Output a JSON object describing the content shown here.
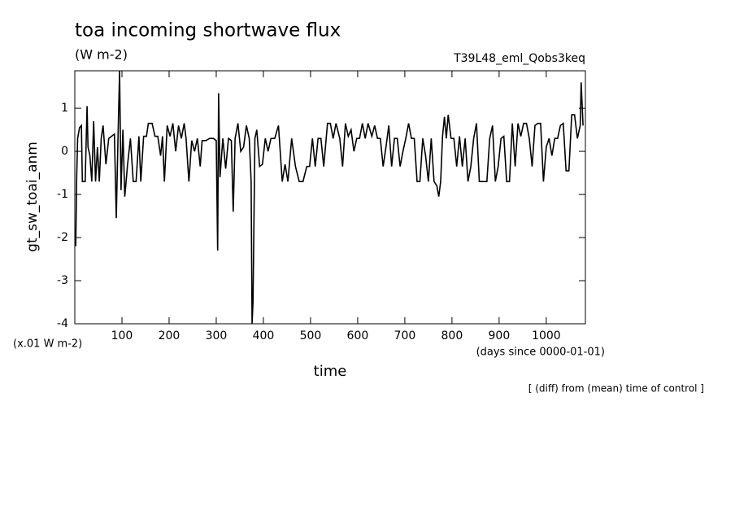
{
  "chart_data": {
    "type": "line",
    "title": "toa incoming shortwave flux",
    "subtitle": "(W m-2)",
    "annotation": "T39L48_eml_Qobs3keq",
    "ylabel": "gt_sw_toai_anm",
    "yunit": "(x.01 W m-2)",
    "xunit": "(days since 0000-01-01)",
    "xlabel": "time",
    "footnote": "[ (diff) from (mean) time of control ]",
    "xlim": [
      0,
      1083
    ],
    "ylim": [
      -4,
      1.87
    ],
    "xticks": [
      100,
      200,
      300,
      400,
      500,
      600,
      700,
      800,
      900,
      1000
    ],
    "yticks": [
      1,
      0,
      -1,
      -2,
      -3,
      -4
    ],
    "series": [
      {
        "name": "gt_sw_toai_anm",
        "color": "#000000",
        "x": [
          2,
          4,
          6,
          10,
          14,
          16,
          22,
          26,
          28,
          32,
          36,
          40,
          44,
          48,
          52,
          56,
          60,
          66,
          72,
          78,
          84,
          88,
          92,
          95,
          98,
          102,
          106,
          112,
          118,
          124,
          130,
          136,
          140,
          146,
          152,
          156,
          164,
          170,
          176,
          182,
          186,
          190,
          196,
          202,
          208,
          214,
          220,
          226,
          232,
          236,
          242,
          248,
          254,
          260,
          266,
          270,
          278,
          286,
          294,
          300,
          303,
          305,
          308,
          314,
          320,
          326,
          332,
          336,
          340,
          346,
          352,
          358,
          364,
          370,
          374,
          376,
          378,
          382,
          386,
          392,
          398,
          404,
          410,
          416,
          424,
          432,
          440,
          446,
          452,
          460,
          468,
          476,
          484,
          492,
          498,
          504,
          510,
          516,
          522,
          528,
          536,
          542,
          548,
          554,
          562,
          568,
          574,
          580,
          586,
          592,
          598,
          604,
          610,
          616,
          622,
          630,
          636,
          642,
          648,
          654,
          660,
          666,
          672,
          678,
          684,
          690,
          696,
          702,
          708,
          714,
          720,
          726,
          732,
          738,
          744,
          750,
          756,
          762,
          768,
          772,
          776,
          780,
          784,
          788,
          792,
          798,
          804,
          810,
          816,
          822,
          828,
          834,
          840,
          846,
          852,
          858,
          866,
          874,
          880,
          886,
          892,
          898,
          904,
          910,
          916,
          922,
          928,
          934,
          940,
          946,
          952,
          958,
          964,
          970,
          976,
          982,
          988,
          994,
          1000,
          1006,
          1012,
          1018,
          1024,
          1030,
          1036,
          1042,
          1048,
          1054,
          1060,
          1066,
          1072,
          1074,
          1078
        ],
        "values": [
          -2.2,
          -0.6,
          0.3,
          0.55,
          0.6,
          -0.7,
          -0.7,
          1.05,
          0.1,
          -0.1,
          -0.7,
          0.7,
          -0.7,
          0.1,
          -0.7,
          0.3,
          0.6,
          -0.3,
          0.3,
          0.35,
          0.4,
          -1.55,
          0.5,
          1.87,
          -0.9,
          0.5,
          -1.05,
          -0.3,
          0.3,
          -0.7,
          -0.7,
          0.35,
          -0.7,
          0.35,
          0.35,
          0.65,
          0.65,
          0.35,
          0.35,
          -0.1,
          0.35,
          -0.7,
          0.6,
          0.35,
          0.65,
          0,
          0.6,
          0.3,
          0.65,
          0.3,
          -0.7,
          0.25,
          0,
          0.3,
          -0.35,
          0.25,
          0.25,
          0.3,
          0.3,
          0.25,
          -2.3,
          1.35,
          -0.6,
          0.3,
          -0.4,
          0.3,
          0.25,
          -1.4,
          0.3,
          0.65,
          0,
          0.1,
          0.6,
          0.3,
          -0.7,
          -4,
          -3.5,
          0.3,
          0.5,
          -0.35,
          -0.3,
          0.3,
          0,
          0.3,
          0.3,
          0.6,
          -0.7,
          -0.3,
          -0.7,
          0.3,
          -0.35,
          -0.7,
          -0.7,
          -0.35,
          -0.35,
          0.3,
          -0.35,
          0.3,
          0.3,
          -0.35,
          0.65,
          0.65,
          0.3,
          0.65,
          0.3,
          -0.35,
          0.65,
          0.35,
          0.5,
          0,
          0.3,
          0.3,
          0.65,
          0.3,
          0.65,
          0.35,
          0.6,
          0.3,
          0.3,
          -0.35,
          0.1,
          0.6,
          -0.35,
          0.3,
          0.3,
          -0.35,
          0,
          0.3,
          0.65,
          0.3,
          0.3,
          -0.7,
          -0.7,
          0.3,
          -0.1,
          -0.7,
          0.3,
          -0.7,
          -0.8,
          -1.05,
          -0.7,
          0.35,
          0.8,
          0.3,
          0.85,
          0.3,
          0.3,
          -0.35,
          0.35,
          -0.35,
          0.3,
          -0.7,
          -0.35,
          0.3,
          0.65,
          -0.7,
          -0.7,
          -0.7,
          0.3,
          0.6,
          -0.7,
          -0.35,
          0.3,
          0.35,
          -0.7,
          -0.7,
          0.65,
          -0.35,
          0.65,
          0.35,
          0.65,
          0.65,
          0.3,
          -0.35,
          0.6,
          0.65,
          0.65,
          -0.7,
          0.1,
          0.3,
          -0.1,
          0.3,
          0.3,
          0.6,
          0.65,
          -0.45,
          -0.45,
          0.85,
          0.85,
          0.3,
          0.6,
          1.6,
          0.6
        ]
      }
    ]
  }
}
